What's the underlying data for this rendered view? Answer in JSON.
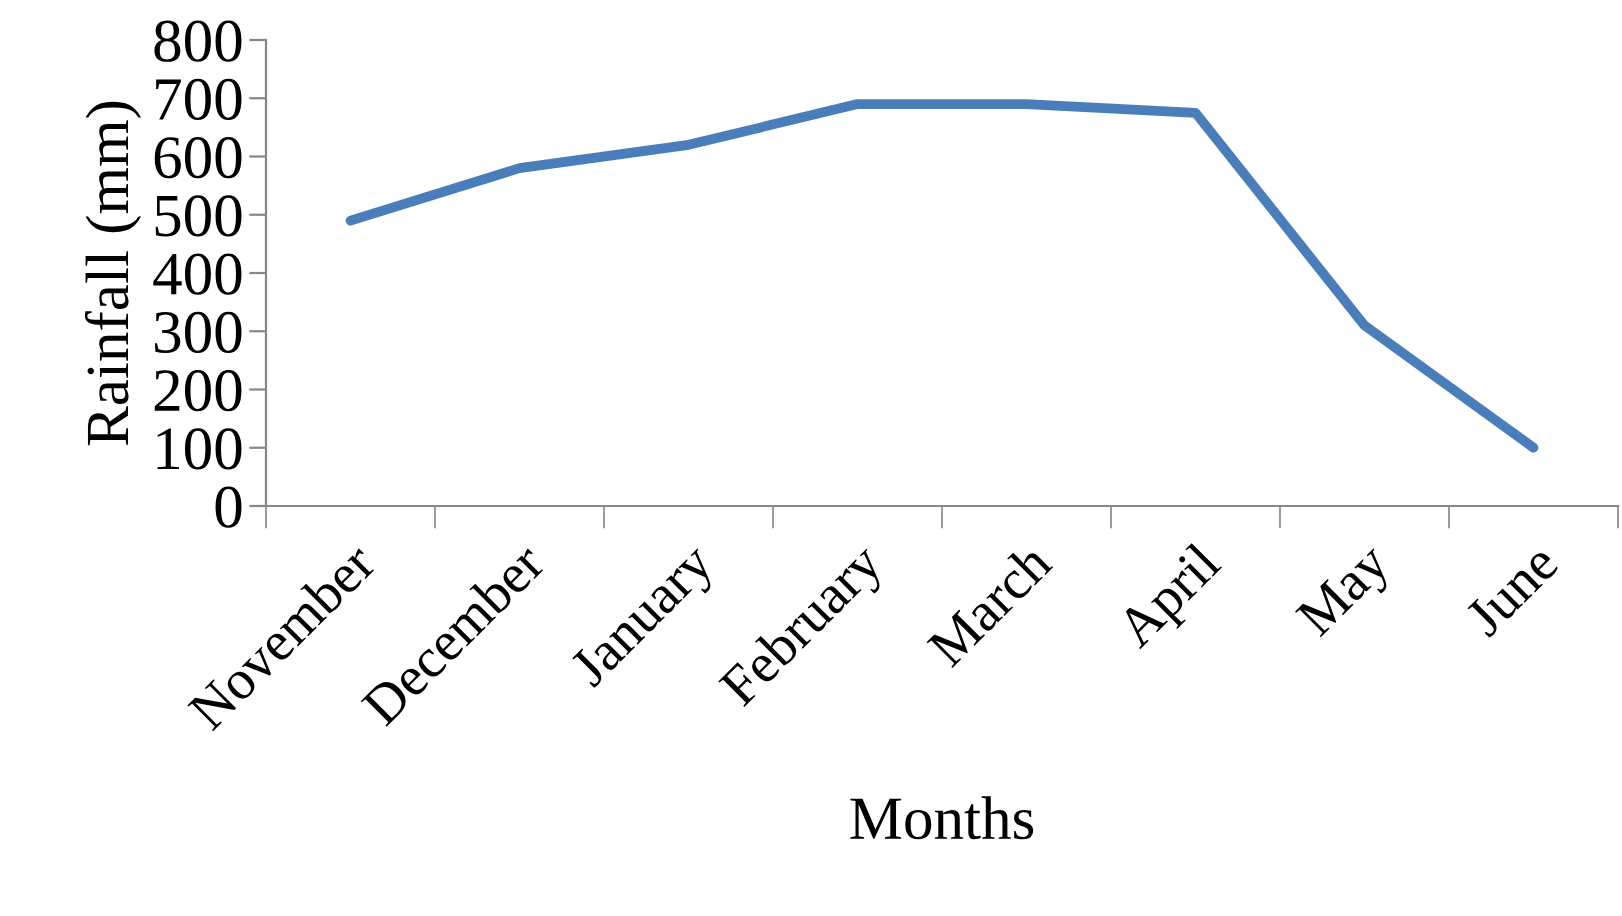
{
  "chart_data": {
    "type": "line",
    "xlabel": "Months",
    "ylabel": "Rainfall (mm)",
    "categories": [
      "November",
      "December",
      "January",
      "February",
      "March",
      "April",
      "May",
      "June"
    ],
    "series": [
      {
        "color": "#4a7ebb",
        "values": [
          490,
          580,
          620,
          690,
          690,
          675,
          310,
          100
        ]
      }
    ],
    "ylim": [
      0,
      800
    ],
    "yticks": [
      0,
      100,
      200,
      300,
      400,
      500,
      600,
      700,
      800
    ],
    "marker": "none",
    "line_style": "solid"
  }
}
